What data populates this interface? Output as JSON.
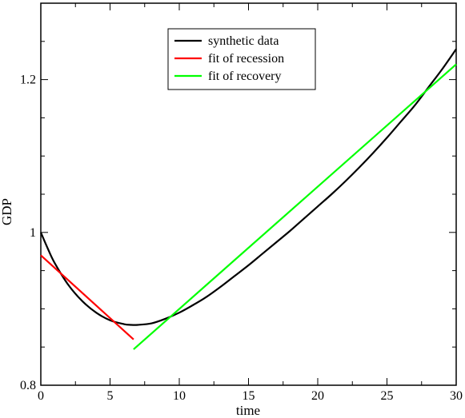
{
  "chart_data": {
    "type": "line",
    "title": "",
    "xlabel": "time",
    "ylabel": "GDP",
    "xlim": [
      0,
      30
    ],
    "ylim": [
      0.8,
      1.3
    ],
    "x_ticks": [
      0,
      5,
      10,
      15,
      20,
      25,
      30
    ],
    "x_tick_labels": [
      "0",
      "5",
      "10",
      "15",
      "20",
      "25",
      "30"
    ],
    "y_ticks": [
      0.8,
      1.0,
      1.2
    ],
    "y_tick_labels": [
      "0.8",
      "1",
      "1.2"
    ],
    "grid": false,
    "legend_position": "top-center",
    "series": [
      {
        "name": "synthetic data",
        "color": "#000000",
        "x": [
          0,
          0.5,
          1,
          2,
          3,
          4,
          5,
          6,
          6.5,
          7,
          8,
          9,
          10,
          11,
          12,
          13,
          14,
          15,
          16,
          17,
          18,
          19,
          20,
          21,
          22,
          23,
          24,
          25,
          26,
          27,
          28,
          29,
          30
        ],
        "y": [
          1.0,
          0.979,
          0.96,
          0.931,
          0.91,
          0.895,
          0.885,
          0.88,
          0.879,
          0.879,
          0.881,
          0.887,
          0.895,
          0.905,
          0.916,
          0.929,
          0.943,
          0.957,
          0.972,
          0.987,
          1.002,
          1.018,
          1.034,
          1.05,
          1.067,
          1.085,
          1.104,
          1.124,
          1.145,
          1.166,
          1.19,
          1.214,
          1.24
        ]
      },
      {
        "name": "fit of recession",
        "color": "#ff0000",
        "x": [
          0,
          6.7
        ],
        "y": [
          0.97,
          0.86
        ]
      },
      {
        "name": "fit of recovery",
        "color": "#00ff00",
        "x": [
          6.7,
          30
        ],
        "y": [
          0.847,
          1.22
        ]
      }
    ]
  }
}
